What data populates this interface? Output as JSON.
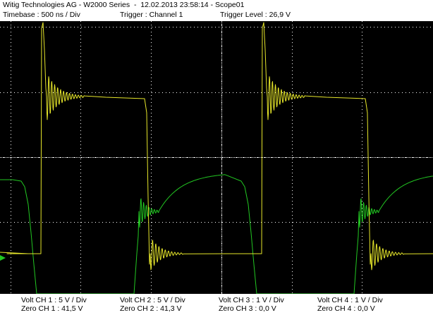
{
  "header": {
    "title": "Witig Technologies AG - W2000 Series  -  12.02.2013 23:58:14 - Scope01",
    "timebase": "Timebase : 500 ns / Div",
    "trigger_source": "Trigger : Channel 1",
    "trigger_level": "Trigger Level : 26,9 V"
  },
  "channels": [
    {
      "volt": "Volt CH 1 : 5 V / Div",
      "zero": "Zero CH 1 : 41,5 V"
    },
    {
      "volt": "Volt CH 2 : 5 V / Div",
      "zero": "Zero CH 2 : 41,3 V"
    },
    {
      "volt": "Volt CH 3 : 1 V / Div",
      "zero": "Zero CH 3 : 0,0 V"
    },
    {
      "volt": "Volt CH 4 : 1 V / Div",
      "zero": "Zero CH 4 : 0,0 V"
    }
  ],
  "colors": {
    "screen_background": "#000000",
    "grid_color": "#ffffff",
    "channel_1": "#e6e62a",
    "channel_2": "#22c822",
    "marker": "#22c822"
  },
  "icons": {
    "ground_marker": "green triangle ground-level marker at left edge"
  }
}
